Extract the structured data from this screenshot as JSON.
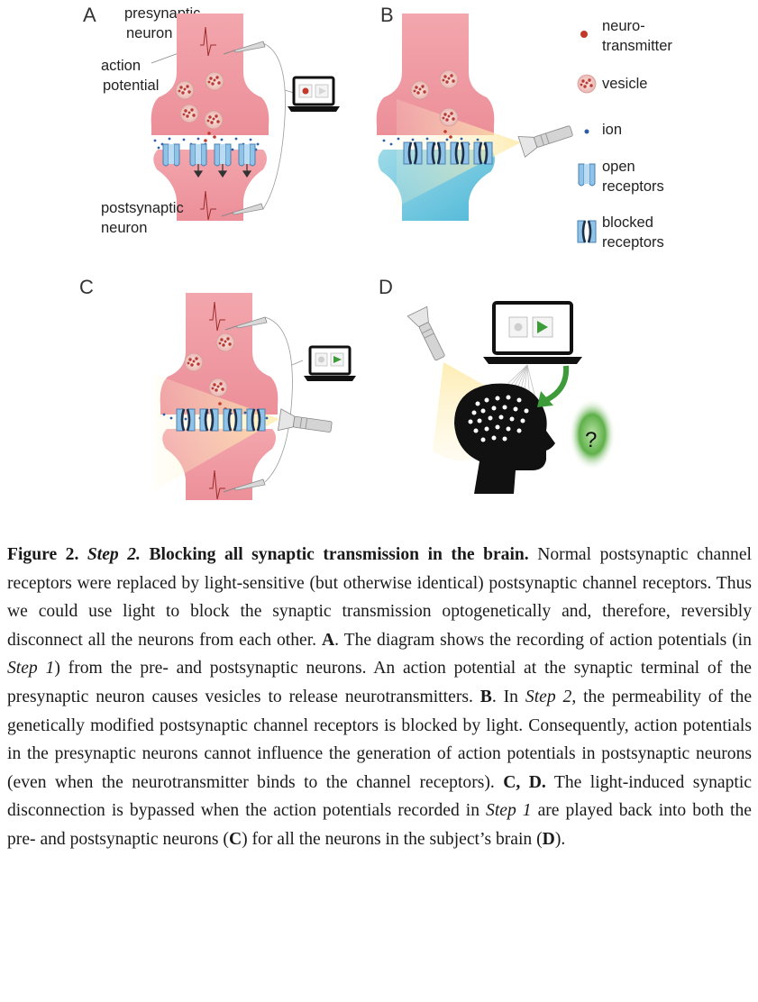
{
  "panels": {
    "a": {
      "letter": "A",
      "presynaptic": [
        "presynaptic",
        "neuron"
      ],
      "action_potential": [
        "action",
        "potential"
      ],
      "postsynaptic": [
        "postsynaptic",
        "neuron"
      ]
    },
    "b": {
      "letter": "B"
    },
    "c": {
      "letter": "C"
    },
    "d": {
      "letter": "D",
      "question_mark": "?"
    }
  },
  "legend": {
    "neurotransmitter": [
      "neuro-",
      "transmitter"
    ],
    "vesicle": [
      "vesicle"
    ],
    "ion": [
      "ion"
    ],
    "open_receptors": [
      "open",
      "receptors"
    ],
    "blocked_receptors": [
      "blocked",
      "receptors"
    ]
  },
  "caption": {
    "s1": "Figure 2.",
    "s2": "Step 2.",
    "s3": "Blocking all synaptic transmission in the brain.",
    "s4": "Normal postsynaptic channel receptors were replaced by light-sensitive (but otherwise identical) postsynaptic channel receptors. Thus we could use light to block the synaptic transmission optogenetically and, therefore, reversibly disconnect all the neurons from each other.",
    "s5": "A",
    "s6": ". The diagram shows the recording of action potentials (in",
    "s7": "Step 1",
    "s8": ") from the pre- and postsynaptic neurons. An action potential at the synaptic terminal of the presynaptic neuron causes vesicles to release neurotransmitters.",
    "s9": "B",
    "s10": ". In",
    "s11": "Step 2",
    "s12": ", the permeability of the genetically modified postsynaptic channel receptors is blocked by light. Consequently, action potentials in the presynaptic neurons cannot influence the generation of action potentials in postsynaptic neurons (even when the neurotransmitter binds to the channel receptors).",
    "s13": "C, D.",
    "s14": "The light-induced synaptic disconnection is bypassed when the action potentials recorded in",
    "s15": "Step 1",
    "s16": "are played back into both the pre- and postsynaptic neurons (",
    "s17": "C",
    "s18": ") for all the neurons in the subject’s brain (",
    "s19": "D",
    "s20": ")."
  },
  "colors": {
    "neuron_pink": "#f0a0a8",
    "vesicle_red": "#c0392b",
    "ion_blue": "#2a5ea8",
    "receptor_blue": "#8fc3e8",
    "light_yellow": "#fbe7a6",
    "blue_neuron": "#62c3df",
    "green_arrow": "#3e9b3a"
  },
  "icons": [
    "laptop-icon",
    "flashlight-icon",
    "electrode-icon",
    "head-icon",
    "question-mark-icon"
  ]
}
